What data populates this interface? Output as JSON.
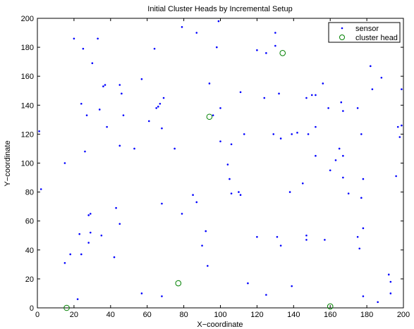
{
  "chart_data": {
    "type": "scatter",
    "title": "Initial Cluster Heads by Incremental Setup",
    "xlabel": "X−coordinate",
    "ylabel": "Y−coordinate",
    "xlim": [
      0,
      200
    ],
    "ylim": [
      0,
      200
    ],
    "xticks": [
      "0",
      "20",
      "40",
      "60",
      "80",
      "100",
      "120",
      "140",
      "160",
      "180",
      "200"
    ],
    "yticks": [
      "0",
      "20",
      "40",
      "60",
      "80",
      "100",
      "120",
      "140",
      "160",
      "180",
      "200"
    ],
    "grid": false,
    "legend_position": "top-right",
    "series": [
      {
        "name": "sensor",
        "marker": "dot",
        "color": "#0000ff",
        "points": [
          [
            20,
            186
          ],
          [
            25,
            179
          ],
          [
            30,
            169
          ],
          [
            33,
            186
          ],
          [
            64,
            179
          ],
          [
            79,
            194
          ],
          [
            87,
            190
          ],
          [
            99,
            198
          ],
          [
            98,
            180
          ],
          [
            120,
            178
          ],
          [
            125,
            176
          ],
          [
            130,
            190
          ],
          [
            130,
            181
          ],
          [
            182,
            167
          ],
          [
            188,
            159
          ],
          [
            57,
            158
          ],
          [
            36,
            153
          ],
          [
            37,
            154
          ],
          [
            45,
            154
          ],
          [
            46,
            148
          ],
          [
            24,
            141
          ],
          [
            27,
            133
          ],
          [
            34,
            137
          ],
          [
            47,
            133
          ],
          [
            66,
            139
          ],
          [
            67,
            141
          ],
          [
            69,
            145
          ],
          [
            65,
            138
          ],
          [
            68,
            124
          ],
          [
            61,
            129
          ],
          [
            94,
            155
          ],
          [
            96,
            133
          ],
          [
            100,
            138
          ],
          [
            111,
            149
          ],
          [
            124,
            145
          ],
          [
            132,
            148
          ],
          [
            147,
            145
          ],
          [
            150,
            147
          ],
          [
            152,
            147
          ],
          [
            156,
            155
          ],
          [
            159,
            138
          ],
          [
            166,
            142
          ],
          [
            167,
            136
          ],
          [
            175,
            138
          ],
          [
            177,
            120
          ],
          [
            183,
            151
          ],
          [
            197,
            125
          ],
          [
            199,
            126
          ],
          [
            198,
            118
          ],
          [
            199,
            151
          ],
          [
            38,
            125
          ],
          [
            45,
            112
          ],
          [
            53,
            110
          ],
          [
            26,
            108
          ],
          [
            15,
            100
          ],
          [
            75,
            110
          ],
          [
            100,
            115
          ],
          [
            106,
            113
          ],
          [
            104,
            99
          ],
          [
            105,
            89
          ],
          [
            113,
            120
          ],
          [
            129,
            120
          ],
          [
            133,
            117
          ],
          [
            139,
            120
          ],
          [
            142,
            121
          ],
          [
            152,
            125
          ],
          [
            148,
            120
          ],
          [
            152,
            105
          ],
          [
            160,
            95
          ],
          [
            163,
            102
          ],
          [
            165,
            110
          ],
          [
            167,
            105
          ],
          [
            167,
            90
          ],
          [
            170,
            79
          ],
          [
            178,
            89
          ],
          [
            196,
            91
          ],
          [
            1,
            122
          ],
          [
            2,
            82
          ],
          [
            29,
            65
          ],
          [
            28,
            64
          ],
          [
            43,
            69
          ],
          [
            45,
            58
          ],
          [
            68,
            72
          ],
          [
            79,
            65
          ],
          [
            85,
            78
          ],
          [
            87,
            73
          ],
          [
            106,
            79
          ],
          [
            110,
            80
          ],
          [
            111,
            78
          ],
          [
            120,
            49
          ],
          [
            131,
            49
          ],
          [
            133,
            43
          ],
          [
            138,
            80
          ],
          [
            145,
            86
          ],
          [
            147,
            50
          ],
          [
            147,
            47
          ],
          [
            157,
            47
          ],
          [
            175,
            49
          ],
          [
            176,
            41
          ],
          [
            178,
            55
          ],
          [
            177,
            76
          ],
          [
            23,
            51
          ],
          [
            29,
            52
          ],
          [
            28,
            45
          ],
          [
            35,
            50
          ],
          [
            42,
            35
          ],
          [
            24,
            37
          ],
          [
            18,
            37
          ],
          [
            15,
            31
          ],
          [
            57,
            10
          ],
          [
            68,
            8
          ],
          [
            90,
            43
          ],
          [
            92,
            53
          ],
          [
            93,
            29
          ],
          [
            115,
            17
          ],
          [
            125,
            9
          ],
          [
            139,
            15
          ],
          [
            178,
            8
          ],
          [
            186,
            4
          ],
          [
            192,
            23
          ],
          [
            193,
            18
          ],
          [
            193,
            10
          ],
          [
            22,
            6
          ]
        ]
      },
      {
        "name": "cluster head",
        "marker": "circle",
        "color": "#008000",
        "points": [
          [
            134,
            176
          ],
          [
            94,
            132
          ],
          [
            77,
            17
          ],
          [
            16,
            0
          ],
          [
            160,
            1
          ]
        ]
      }
    ]
  }
}
